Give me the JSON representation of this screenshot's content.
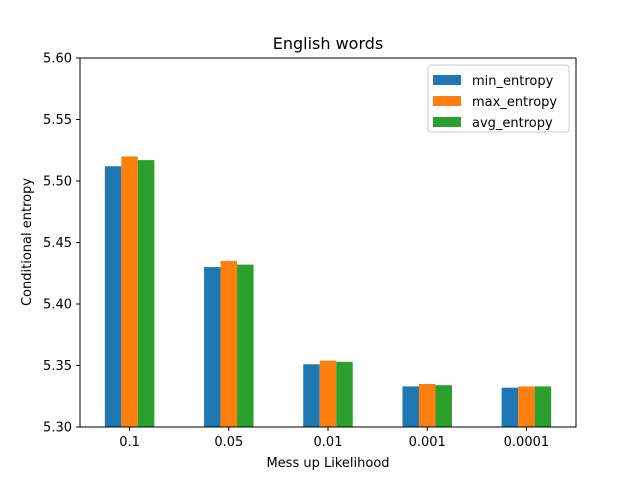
{
  "chart_data": {
    "type": "bar",
    "title": "English words",
    "xlabel": "Mess up Likelihood",
    "ylabel": "Conditional entropy",
    "categories": [
      "0.1",
      "0.05",
      "0.01",
      "0.001",
      "0.0001"
    ],
    "ylim": [
      5.3,
      5.6
    ],
    "yticks": [
      "5.30",
      "5.35",
      "5.40",
      "5.45",
      "5.50",
      "5.55",
      "5.60"
    ],
    "legend_position": "top-right",
    "grid": false,
    "series": [
      {
        "name": "min_entropy",
        "color": "#1f77b4",
        "values": [
          5.512,
          5.43,
          5.351,
          5.333,
          5.332
        ]
      },
      {
        "name": "max_entropy",
        "color": "#ff7f0e",
        "values": [
          5.52,
          5.435,
          5.354,
          5.335,
          5.333
        ]
      },
      {
        "name": "avg_entropy",
        "color": "#2ca02c",
        "values": [
          5.517,
          5.432,
          5.353,
          5.334,
          5.333
        ]
      }
    ]
  }
}
